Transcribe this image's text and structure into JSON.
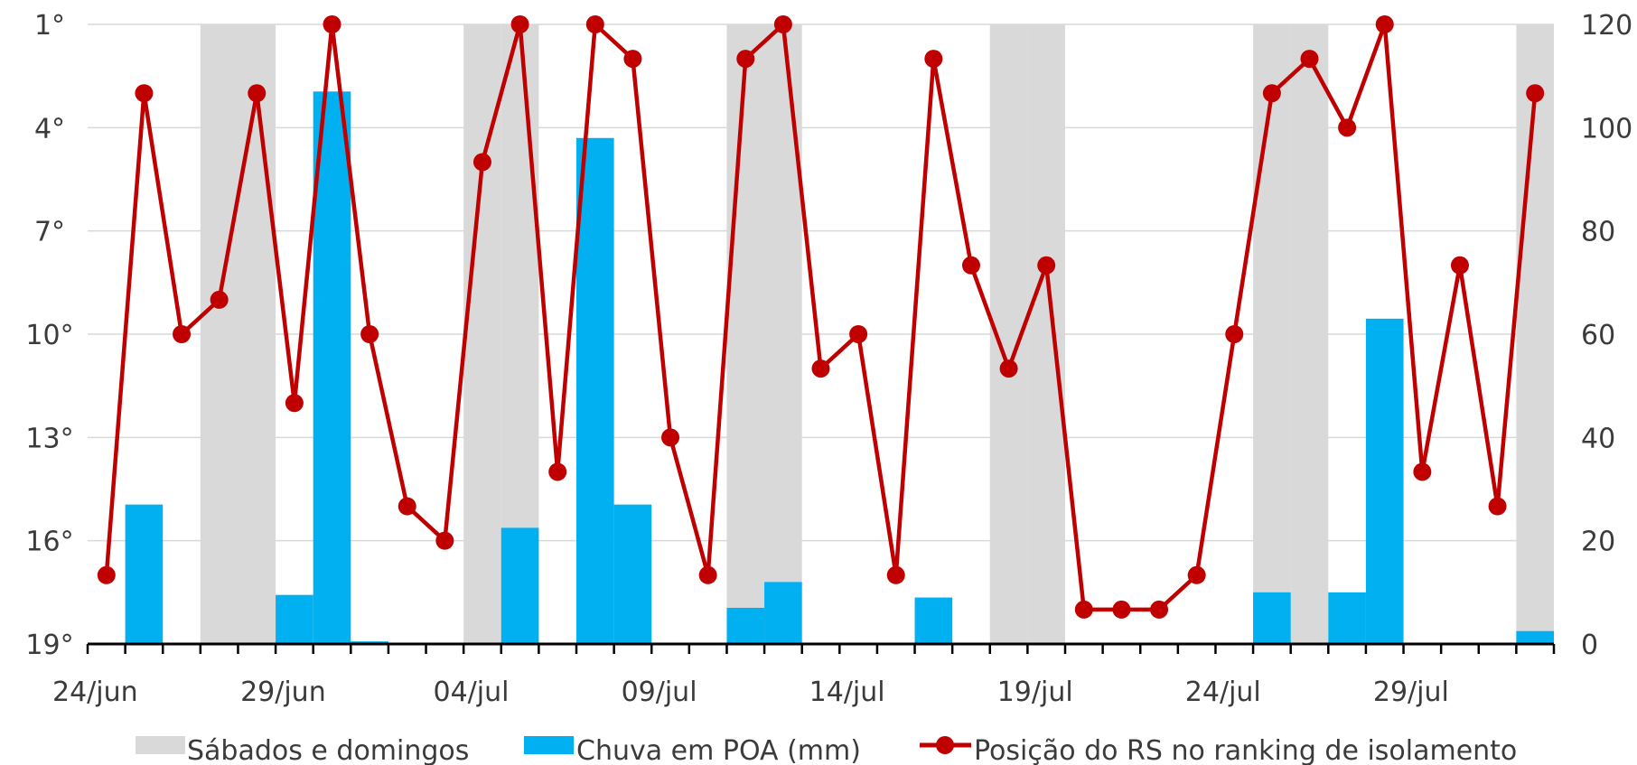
{
  "chart_data": {
    "type": "bar+line",
    "x_tick_labels": [
      "24/jun",
      "29/jun",
      "04/jul",
      "09/jul",
      "14/jul",
      "19/jul",
      "24/jul",
      "29/jul"
    ],
    "dates": [
      "24/jun",
      "25/jun",
      "26/jun",
      "27/jun",
      "28/jun",
      "29/jun",
      "30/jun",
      "01/jul",
      "02/jul",
      "03/jul",
      "04/jul",
      "05/jul",
      "06/jul",
      "07/jul",
      "08/jul",
      "09/jul",
      "10/jul",
      "11/jul",
      "12/jul",
      "13/jul",
      "14/jul",
      "15/jul",
      "16/jul",
      "17/jul",
      "18/jul",
      "19/jul",
      "20/jul",
      "21/jul",
      "22/jul",
      "23/jul",
      "24/jul",
      "25/jul",
      "26/jul",
      "27/jul",
      "28/jul",
      "29/jul",
      "30/jul",
      "31/jul",
      "01/ago"
    ],
    "weekend_dates": [
      "27/jun",
      "28/jun",
      "04/jul",
      "05/jul",
      "11/jul",
      "12/jul",
      "18/jul",
      "19/jul",
      "25/jul",
      "26/jul",
      "01/ago"
    ],
    "left_axis": {
      "ticks": [
        "1°",
        "4°",
        "7°",
        "10°",
        "13°",
        "16°",
        "19°"
      ],
      "range": [
        1,
        19
      ],
      "reversed": true
    },
    "right_axis": {
      "ticks": [
        "120",
        "100",
        "80",
        "60",
        "40",
        "20",
        "0"
      ],
      "range": [
        0,
        120
      ]
    },
    "series": [
      {
        "name": "Sábados e domingos",
        "type": "band",
        "color": "#d9d9d9"
      },
      {
        "name": "Chuva em POA (mm)",
        "type": "bar",
        "axis": "right",
        "color": "#00b0f0",
        "values": [
          0,
          27,
          0,
          0,
          0,
          9.5,
          107,
          0.5,
          0,
          0,
          0,
          22.5,
          0,
          98,
          27,
          0,
          0,
          7,
          12,
          0,
          0,
          0,
          9,
          0,
          0,
          0,
          0,
          0,
          0,
          0,
          0,
          10,
          0,
          10,
          63,
          0,
          0,
          0,
          2.5
        ]
      },
      {
        "name": "Posição do RS no ranking de isolamento",
        "type": "line",
        "axis": "left",
        "color": "#c00000",
        "values": [
          17,
          3,
          10,
          9,
          3,
          12,
          1,
          10,
          15,
          16,
          5,
          1,
          14,
          1,
          2,
          13,
          17,
          2,
          1,
          11,
          10,
          17,
          2,
          8,
          11,
          8,
          18,
          18,
          18,
          17,
          10,
          3,
          2,
          4,
          1,
          14,
          8,
          15,
          3
        ]
      }
    ]
  },
  "legend": {
    "weekend_label": "Sábados e domingos",
    "rain_label": "Chuva em POA (mm)",
    "rank_label": "Posição do RS no ranking de isolamento"
  }
}
